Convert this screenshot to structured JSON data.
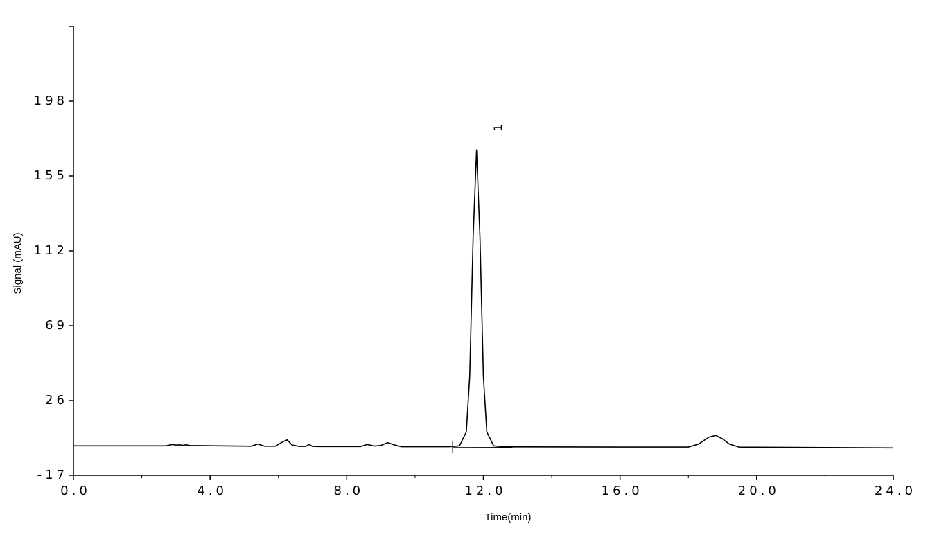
{
  "chart_data": {
    "type": "line",
    "x_label": "Time(min)",
    "y_label": "Signal (mAU)",
    "xlim": [
      0,
      24
    ],
    "ylim": [
      -17,
      241
    ],
    "xticks": [
      {
        "value": 0,
        "label": "0.0"
      },
      {
        "value": 4,
        "label": "4.0"
      },
      {
        "value": 8,
        "label": "8.0"
      },
      {
        "value": 12,
        "label": "12.0"
      },
      {
        "value": 16,
        "label": "16.0"
      },
      {
        "value": 20,
        "label": "20.0"
      },
      {
        "value": 24,
        "label": "24.0"
      }
    ],
    "xticks_minor": [
      2,
      6,
      10,
      14,
      18,
      22
    ],
    "yticks": [
      -17,
      26,
      69,
      112,
      155,
      198
    ],
    "peak_label": "1",
    "series": [
      {
        "color": "#000000",
        "x": [
          0,
          2.7,
          2.9,
          3.0,
          3.1,
          3.2,
          3.3,
          3.4,
          5.2,
          5.4,
          5.6,
          5.9,
          6.1,
          6.25,
          6.4,
          6.6,
          6.8,
          6.9,
          7.0,
          7.2,
          8.4,
          8.6,
          8.8,
          9.0,
          9.2,
          9.4,
          9.6,
          11.0,
          11.3,
          11.5,
          11.6,
          11.7,
          11.8,
          11.9,
          12.0,
          12.1,
          12.3,
          12.6,
          13.0,
          16.0,
          18.0,
          18.3,
          18.6,
          18.8,
          19.0,
          19.2,
          19.5,
          20.0,
          24.0
        ],
        "values": [
          0,
          0,
          0.8,
          0.4,
          0.6,
          0.3,
          0.6,
          0.2,
          -0.2,
          1,
          -0.2,
          -0.2,
          2,
          3.5,
          0.5,
          -0.3,
          -0.3,
          0.8,
          -0.3,
          -0.4,
          -0.4,
          0.8,
          -0.1,
          0.2,
          1.8,
          0.5,
          -0.5,
          -0.5,
          0,
          8,
          40,
          120,
          170,
          120,
          40,
          8,
          0,
          -0.6,
          -0.6,
          -0.7,
          -0.7,
          1,
          5,
          6,
          4,
          1,
          -0.8,
          -0.8,
          -1.2
        ]
      }
    ],
    "baseline": {
      "x": [
        11.1,
        12.85
      ],
      "values": [
        -1,
        -0.9
      ]
    }
  }
}
